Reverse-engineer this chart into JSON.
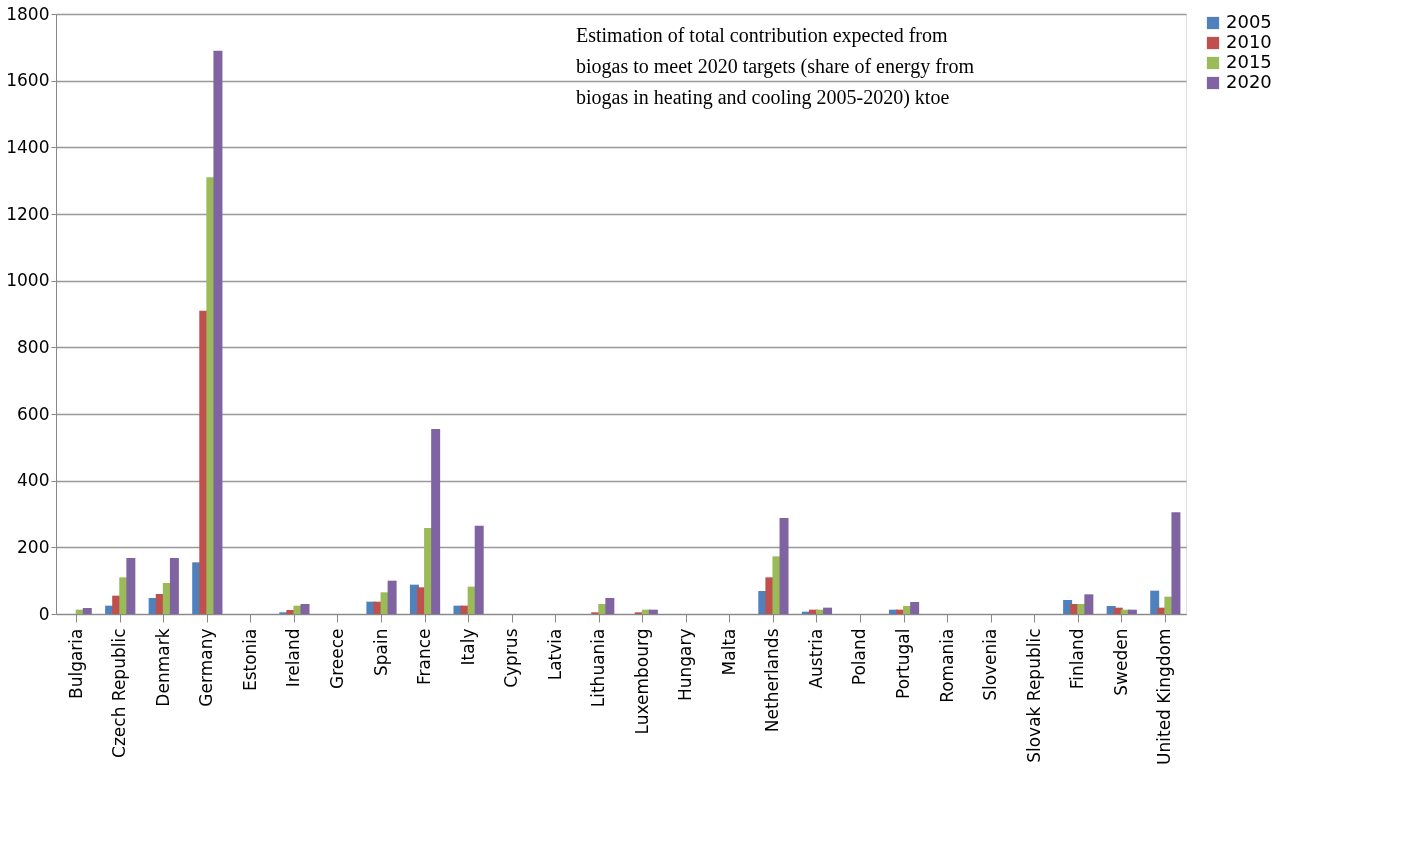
{
  "chart_data": {
    "type": "bar",
    "categories": [
      "Bulgaria",
      "Czech Republic",
      "Denmark",
      "Germany",
      "Estonia",
      "Ireland",
      "Greece",
      "Spain",
      "France",
      "Italy",
      "Cyprus",
      "Latvia",
      "Lithuania",
      "Luxembourg",
      "Hungary",
      "Malta",
      "Netherlands",
      "Austria",
      "Poland",
      "Portugal",
      "Romania",
      "Slovenia",
      "Slovak Republic",
      "Finland",
      "Sweden",
      "United Kingdom"
    ],
    "series": [
      {
        "name": "2005",
        "color": "#4f81bd",
        "values": [
          0,
          25,
          48,
          155,
          0,
          5,
          0,
          37,
          88,
          25,
          0,
          0,
          0,
          0,
          0,
          0,
          69,
          7,
          0,
          13,
          0,
          0,
          0,
          42,
          24,
          70
        ]
      },
      {
        "name": "2010",
        "color": "#c0504d",
        "values": [
          0,
          55,
          60,
          910,
          0,
          12,
          0,
          37,
          80,
          25,
          0,
          0,
          5,
          5,
          0,
          0,
          110,
          13,
          0,
          13,
          0,
          0,
          0,
          30,
          19,
          19
        ]
      },
      {
        "name": "2015",
        "color": "#9bbb59",
        "values": [
          13,
          110,
          93,
          1310,
          0,
          25,
          0,
          65,
          258,
          82,
          0,
          0,
          30,
          13,
          0,
          0,
          173,
          13,
          0,
          24,
          0,
          0,
          0,
          30,
          13,
          52
        ]
      },
      {
        "name": "2020",
        "color": "#8064a2",
        "values": [
          18,
          168,
          168,
          1690,
          0,
          30,
          0,
          100,
          555,
          265,
          0,
          0,
          48,
          13,
          0,
          0,
          288,
          19,
          0,
          36,
          0,
          0,
          0,
          59,
          13,
          305
        ]
      }
    ],
    "ylim": [
      0,
      1800
    ],
    "yticks": [
      0,
      200,
      400,
      600,
      800,
      1000,
      1200,
      1400,
      1600,
      1800
    ],
    "grid": "y",
    "legend": "right",
    "annotations": [
      "Estimation of total contribution  expected  from\nbiogas to meet 2020 targets  (share of energy  from\nbiogas in heating and  cooling 2005-2020)  ktoe"
    ]
  }
}
